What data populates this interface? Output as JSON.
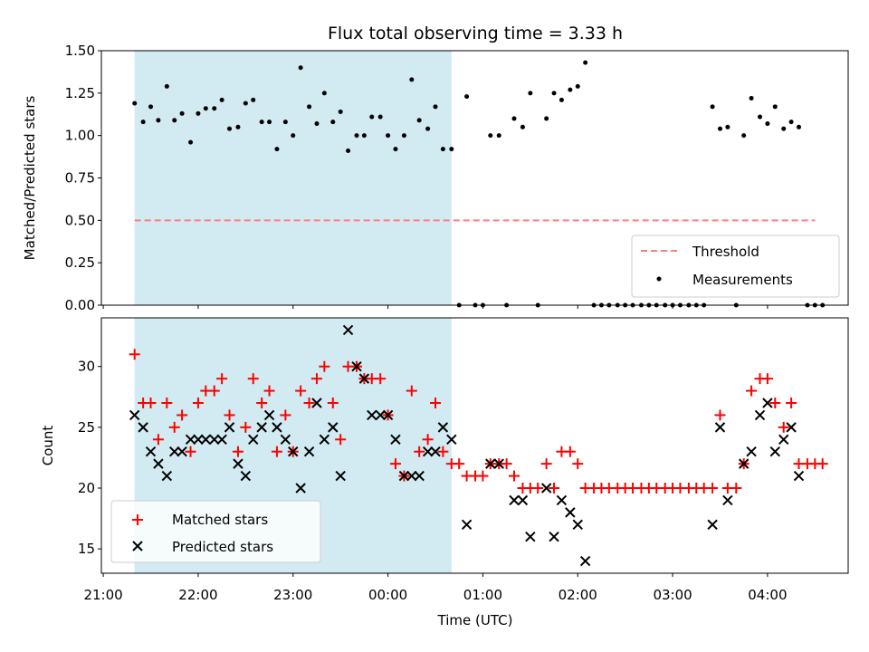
{
  "title": "Flux total observing time = 3.33 h",
  "colors": {
    "shade": "#add8e6",
    "measurement": "#000000",
    "threshold": "#ff7f7f",
    "matched": "#ff0000",
    "predicted": "#000000"
  },
  "chart_data": [
    {
      "type": "scatter",
      "panel": "top",
      "title": "Flux total observing time = 3.33 h",
      "xlabel": "",
      "ylabel": "Matched/Predicted stars",
      "x_unit": "hours since 21:00 UTC",
      "xlim": [
        -0.02,
        7.85
      ],
      "ylim": [
        0,
        1.5
      ],
      "yticks": [
        "0.00",
        "0.25",
        "0.50",
        "0.75",
        "1.00",
        "1.25",
        "1.50"
      ],
      "xticks": [
        "21:00",
        "22:00",
        "23:00",
        "00:00",
        "01:00",
        "02:00",
        "03:00",
        "04:00"
      ],
      "shaded_interval": [
        0.33,
        3.67
      ],
      "threshold": {
        "name": "Threshold",
        "value": 0.5,
        "x": [
          0.33,
          7.5
        ]
      },
      "legend_position": "lower right",
      "legend": [
        "Threshold",
        "Measurements"
      ],
      "series": [
        {
          "name": "Measurements",
          "points": [
            [
              0.33,
              1.19
            ],
            [
              0.42,
              1.08
            ],
            [
              0.5,
              1.17
            ],
            [
              0.58,
              1.09
            ],
            [
              0.67,
              1.29
            ],
            [
              0.75,
              1.09
            ],
            [
              0.83,
              1.13
            ],
            [
              0.92,
              0.96
            ],
            [
              1.0,
              1.13
            ],
            [
              1.08,
              1.16
            ],
            [
              1.17,
              1.16
            ],
            [
              1.25,
              1.21
            ],
            [
              1.33,
              1.04
            ],
            [
              1.42,
              1.05
            ],
            [
              1.5,
              1.19
            ],
            [
              1.58,
              1.21
            ],
            [
              1.67,
              1.08
            ],
            [
              1.75,
              1.08
            ],
            [
              1.83,
              0.92
            ],
            [
              1.92,
              1.08
            ],
            [
              2.0,
              1.0
            ],
            [
              2.08,
              1.4
            ],
            [
              2.17,
              1.17
            ],
            [
              2.25,
              1.07
            ],
            [
              2.33,
              1.25
            ],
            [
              2.42,
              1.08
            ],
            [
              2.5,
              1.14
            ],
            [
              2.58,
              0.91
            ],
            [
              2.67,
              1.0
            ],
            [
              2.75,
              1.0
            ],
            [
              2.83,
              1.11
            ],
            [
              2.92,
              1.11
            ],
            [
              3.0,
              1.0
            ],
            [
              3.08,
              0.92
            ],
            [
              3.17,
              1.0
            ],
            [
              3.25,
              1.33
            ],
            [
              3.33,
              1.09
            ],
            [
              3.42,
              1.04
            ],
            [
              3.5,
              1.17
            ],
            [
              3.58,
              0.92
            ],
            [
              3.67,
              0.92
            ],
            [
              3.75,
              0.0
            ],
            [
              3.83,
              1.23
            ],
            [
              3.92,
              0.0
            ],
            [
              4.0,
              0.0
            ],
            [
              4.08,
              1.0
            ],
            [
              4.17,
              1.0
            ],
            [
              4.25,
              0.0
            ],
            [
              4.33,
              1.1
            ],
            [
              4.42,
              1.05
            ],
            [
              4.5,
              1.25
            ],
            [
              4.58,
              0.0
            ],
            [
              4.67,
              1.1
            ],
            [
              4.75,
              1.25
            ],
            [
              4.83,
              1.21
            ],
            [
              4.92,
              1.27
            ],
            [
              5.0,
              1.29
            ],
            [
              5.08,
              1.43
            ],
            [
              5.17,
              0.0
            ],
            [
              5.25,
              0.0
            ],
            [
              5.33,
              0.0
            ],
            [
              5.42,
              0.0
            ],
            [
              5.5,
              0.0
            ],
            [
              5.58,
              0.0
            ],
            [
              5.67,
              0.0
            ],
            [
              5.75,
              0.0
            ],
            [
              5.83,
              0.0
            ],
            [
              5.92,
              0.0
            ],
            [
              6.0,
              0.0
            ],
            [
              6.08,
              0.0
            ],
            [
              6.17,
              0.0
            ],
            [
              6.25,
              0.0
            ],
            [
              6.33,
              0.0
            ],
            [
              6.42,
              1.17
            ],
            [
              6.5,
              1.04
            ],
            [
              6.58,
              1.05
            ],
            [
              6.67,
              0.0
            ],
            [
              6.75,
              1.0
            ],
            [
              6.83,
              1.22
            ],
            [
              6.92,
              1.11
            ],
            [
              7.0,
              1.07
            ],
            [
              7.08,
              1.17
            ],
            [
              7.17,
              1.04
            ],
            [
              7.25,
              1.08
            ],
            [
              7.33,
              1.05
            ],
            [
              7.42,
              0.0
            ],
            [
              7.5,
              0.0
            ],
            [
              7.58,
              0.0
            ]
          ]
        }
      ]
    },
    {
      "type": "scatter",
      "panel": "bottom",
      "xlabel": "Time (UTC)",
      "ylabel": "Count",
      "x_unit": "hours since 21:00 UTC",
      "xlim": [
        -0.02,
        7.85
      ],
      "ylim": [
        13,
        34
      ],
      "yticks": [
        "15",
        "20",
        "25",
        "30"
      ],
      "xticks": [
        "21:00",
        "22:00",
        "23:00",
        "00:00",
        "01:00",
        "02:00",
        "03:00",
        "04:00"
      ],
      "shaded_interval": [
        0.33,
        3.67
      ],
      "legend_position": "lower left",
      "legend": [
        "Matched stars",
        "Predicted stars"
      ],
      "series": [
        {
          "name": "Matched stars",
          "marker": "+",
          "points": [
            [
              0.33,
              31
            ],
            [
              0.42,
              27
            ],
            [
              0.5,
              27
            ],
            [
              0.58,
              24
            ],
            [
              0.67,
              27
            ],
            [
              0.75,
              25
            ],
            [
              0.83,
              26
            ],
            [
              0.92,
              23
            ],
            [
              1.0,
              27
            ],
            [
              1.08,
              28
            ],
            [
              1.17,
              28
            ],
            [
              1.25,
              29
            ],
            [
              1.33,
              26
            ],
            [
              1.42,
              23
            ],
            [
              1.5,
              25
            ],
            [
              1.58,
              29
            ],
            [
              1.67,
              27
            ],
            [
              1.75,
              28
            ],
            [
              1.83,
              23
            ],
            [
              1.92,
              26
            ],
            [
              2.0,
              23
            ],
            [
              2.08,
              28
            ],
            [
              2.17,
              27
            ],
            [
              2.25,
              29
            ],
            [
              2.33,
              30
            ],
            [
              2.42,
              27
            ],
            [
              2.5,
              24
            ],
            [
              2.58,
              30
            ],
            [
              2.67,
              30
            ],
            [
              2.75,
              29
            ],
            [
              2.83,
              29
            ],
            [
              2.92,
              29
            ],
            [
              3.0,
              26
            ],
            [
              3.08,
              22
            ],
            [
              3.17,
              21
            ],
            [
              3.25,
              28
            ],
            [
              3.33,
              23
            ],
            [
              3.42,
              24
            ],
            [
              3.5,
              27
            ],
            [
              3.58,
              23
            ],
            [
              3.67,
              22
            ],
            [
              3.75,
              22
            ],
            [
              3.83,
              21
            ],
            [
              3.92,
              21
            ],
            [
              4.0,
              21
            ],
            [
              4.08,
              22
            ],
            [
              4.17,
              22
            ],
            [
              4.25,
              22
            ],
            [
              4.33,
              21
            ],
            [
              4.42,
              20
            ],
            [
              4.5,
              20
            ],
            [
              4.58,
              20
            ],
            [
              4.67,
              22
            ],
            [
              4.75,
              20
            ],
            [
              4.83,
              23
            ],
            [
              4.92,
              23
            ],
            [
              5.0,
              22
            ],
            [
              5.08,
              20
            ],
            [
              5.17,
              20
            ],
            [
              5.25,
              20
            ],
            [
              5.33,
              20
            ],
            [
              5.42,
              20
            ],
            [
              5.5,
              20
            ],
            [
              5.58,
              20
            ],
            [
              5.67,
              20
            ],
            [
              5.75,
              20
            ],
            [
              5.83,
              20
            ],
            [
              5.92,
              20
            ],
            [
              6.0,
              20
            ],
            [
              6.08,
              20
            ],
            [
              6.17,
              20
            ],
            [
              6.25,
              20
            ],
            [
              6.33,
              20
            ],
            [
              6.42,
              20
            ],
            [
              6.5,
              26
            ],
            [
              6.58,
              20
            ],
            [
              6.67,
              20
            ],
            [
              6.75,
              22
            ],
            [
              6.83,
              28
            ],
            [
              6.92,
              29
            ],
            [
              7.0,
              29
            ],
            [
              7.08,
              27
            ],
            [
              7.17,
              25
            ],
            [
              7.25,
              27
            ],
            [
              7.33,
              22
            ],
            [
              7.42,
              22
            ],
            [
              7.5,
              22
            ],
            [
              7.58,
              22
            ]
          ]
        },
        {
          "name": "Predicted stars",
          "marker": "x",
          "points": [
            [
              0.33,
              26
            ],
            [
              0.42,
              25
            ],
            [
              0.5,
              23
            ],
            [
              0.58,
              22
            ],
            [
              0.67,
              21
            ],
            [
              0.75,
              23
            ],
            [
              0.83,
              23
            ],
            [
              0.92,
              24
            ],
            [
              1.0,
              24
            ],
            [
              1.08,
              24
            ],
            [
              1.17,
              24
            ],
            [
              1.25,
              24
            ],
            [
              1.33,
              25
            ],
            [
              1.42,
              22
            ],
            [
              1.5,
              21
            ],
            [
              1.58,
              24
            ],
            [
              1.67,
              25
            ],
            [
              1.75,
              26
            ],
            [
              1.83,
              25
            ],
            [
              1.92,
              24
            ],
            [
              2.0,
              23
            ],
            [
              2.08,
              20
            ],
            [
              2.17,
              23
            ],
            [
              2.25,
              27
            ],
            [
              2.33,
              24
            ],
            [
              2.42,
              25
            ],
            [
              2.5,
              21
            ],
            [
              2.58,
              33
            ],
            [
              2.67,
              30
            ],
            [
              2.75,
              29
            ],
            [
              2.83,
              26
            ],
            [
              2.92,
              26
            ],
            [
              3.0,
              26
            ],
            [
              3.08,
              24
            ],
            [
              3.17,
              21
            ],
            [
              3.25,
              21
            ],
            [
              3.33,
              21
            ],
            [
              3.42,
              23
            ],
            [
              3.5,
              23
            ],
            [
              3.58,
              25
            ],
            [
              3.67,
              24
            ],
            [
              3.83,
              17
            ],
            [
              4.08,
              22
            ],
            [
              4.17,
              22
            ],
            [
              4.33,
              19
            ],
            [
              4.42,
              19
            ],
            [
              4.5,
              16
            ],
            [
              4.67,
              20
            ],
            [
              4.75,
              16
            ],
            [
              4.83,
              19
            ],
            [
              4.92,
              18
            ],
            [
              5.0,
              17
            ],
            [
              5.08,
              14
            ],
            [
              6.42,
              17
            ],
            [
              6.5,
              25
            ],
            [
              6.58,
              19
            ],
            [
              6.75,
              22
            ],
            [
              6.83,
              23
            ],
            [
              6.92,
              26
            ],
            [
              7.0,
              27
            ],
            [
              7.08,
              23
            ],
            [
              7.17,
              24
            ],
            [
              7.25,
              25
            ],
            [
              7.33,
              21
            ]
          ]
        }
      ]
    }
  ]
}
